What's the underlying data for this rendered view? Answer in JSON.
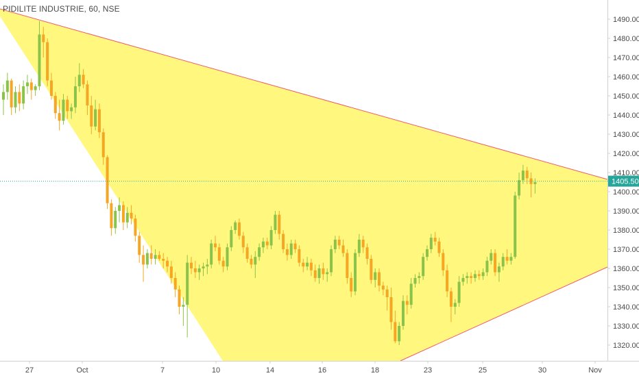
{
  "title": "PIDILITE INDUSTRIE, 60, NSE",
  "colors": {
    "up": "#8BC34A",
    "down": "#F5A623",
    "wedge_fill": "#FFF55A",
    "wedge_line": "#F05A6A",
    "last_price_bg": "#26A69A",
    "axis_text": "#4a4a4a",
    "axis_line": "#d0d0d0"
  },
  "chart_data": {
    "type": "candlestick",
    "title": "PIDILITE INDUSTRIE, 60, NSE",
    "y_ticks": [
      1320,
      1330,
      1340,
      1350,
      1360,
      1370,
      1380,
      1390,
      1400,
      1410,
      1420,
      1430,
      1440,
      1450,
      1460,
      1470,
      1480,
      1490
    ],
    "y_tick_labels": [
      "1320.00",
      "1330.00",
      "1340.00",
      "1350.00",
      "1360.00",
      "1370.00",
      "1380.00",
      "1390.00",
      "1400.00",
      "1410.00",
      "1420.00",
      "1430.00",
      "1440.00",
      "1450.00",
      "1460.00",
      "1470.00",
      "1480.00",
      "1490.00"
    ],
    "ylim": [
      1316,
      1494
    ],
    "x_labels": [
      "27",
      "Oct",
      "7",
      "10",
      "14",
      "16",
      "18",
      "23",
      "25",
      "30",
      "Nov"
    ],
    "last_price": 1405.5,
    "last_price_label": "1405.50",
    "candles": [
      {
        "o": 1448,
        "h": 1456,
        "l": 1440,
        "c": 1452
      },
      {
        "o": 1452,
        "h": 1462,
        "l": 1448,
        "c": 1458
      },
      {
        "o": 1458,
        "h": 1459,
        "l": 1440,
        "c": 1444
      },
      {
        "o": 1444,
        "h": 1455,
        "l": 1441,
        "c": 1452
      },
      {
        "o": 1452,
        "h": 1456,
        "l": 1442,
        "c": 1446
      },
      {
        "o": 1446,
        "h": 1458,
        "l": 1443,
        "c": 1455
      },
      {
        "o": 1455,
        "h": 1461,
        "l": 1451,
        "c": 1457
      },
      {
        "o": 1457,
        "h": 1459,
        "l": 1448,
        "c": 1453
      },
      {
        "o": 1453,
        "h": 1456,
        "l": 1450,
        "c": 1455
      },
      {
        "o": 1455,
        "h": 1489,
        "l": 1453,
        "c": 1482
      },
      {
        "o": 1482,
        "h": 1486,
        "l": 1470,
        "c": 1478
      },
      {
        "o": 1478,
        "h": 1480,
        "l": 1455,
        "c": 1458
      },
      {
        "o": 1458,
        "h": 1462,
        "l": 1448,
        "c": 1450
      },
      {
        "o": 1450,
        "h": 1452,
        "l": 1438,
        "c": 1441
      },
      {
        "o": 1441,
        "h": 1448,
        "l": 1432,
        "c": 1437
      },
      {
        "o": 1437,
        "h": 1451,
        "l": 1435,
        "c": 1448
      },
      {
        "o": 1448,
        "h": 1450,
        "l": 1438,
        "c": 1442
      },
      {
        "o": 1442,
        "h": 1446,
        "l": 1438,
        "c": 1444
      },
      {
        "o": 1444,
        "h": 1460,
        "l": 1441,
        "c": 1455
      },
      {
        "o": 1455,
        "h": 1467,
        "l": 1452,
        "c": 1461
      },
      {
        "o": 1461,
        "h": 1464,
        "l": 1454,
        "c": 1456
      },
      {
        "o": 1456,
        "h": 1458,
        "l": 1440,
        "c": 1445
      },
      {
        "o": 1445,
        "h": 1450,
        "l": 1430,
        "c": 1434
      },
      {
        "o": 1434,
        "h": 1448,
        "l": 1432,
        "c": 1443
      },
      {
        "o": 1443,
        "h": 1446,
        "l": 1428,
        "c": 1431
      },
      {
        "o": 1431,
        "h": 1433,
        "l": 1414,
        "c": 1418
      },
      {
        "o": 1418,
        "h": 1419,
        "l": 1391,
        "c": 1394
      },
      {
        "o": 1394,
        "h": 1396,
        "l": 1377,
        "c": 1381
      },
      {
        "o": 1381,
        "h": 1392,
        "l": 1378,
        "c": 1390
      },
      {
        "o": 1390,
        "h": 1397,
        "l": 1384,
        "c": 1393
      },
      {
        "o": 1393,
        "h": 1395,
        "l": 1380,
        "c": 1384
      },
      {
        "o": 1384,
        "h": 1392,
        "l": 1381,
        "c": 1389
      },
      {
        "o": 1389,
        "h": 1393,
        "l": 1383,
        "c": 1386
      },
      {
        "o": 1386,
        "h": 1388,
        "l": 1374,
        "c": 1377
      },
      {
        "o": 1377,
        "h": 1379,
        "l": 1363,
        "c": 1367
      },
      {
        "o": 1367,
        "h": 1372,
        "l": 1353,
        "c": 1362
      },
      {
        "o": 1362,
        "h": 1370,
        "l": 1360,
        "c": 1368
      },
      {
        "o": 1368,
        "h": 1372,
        "l": 1362,
        "c": 1365
      },
      {
        "o": 1365,
        "h": 1370,
        "l": 1362,
        "c": 1367
      },
      {
        "o": 1367,
        "h": 1369,
        "l": 1364,
        "c": 1365
      },
      {
        "o": 1365,
        "h": 1368,
        "l": 1360,
        "c": 1364
      },
      {
        "o": 1364,
        "h": 1366,
        "l": 1358,
        "c": 1361
      },
      {
        "o": 1361,
        "h": 1364,
        "l": 1352,
        "c": 1355
      },
      {
        "o": 1355,
        "h": 1358,
        "l": 1345,
        "c": 1349
      },
      {
        "o": 1349,
        "h": 1351,
        "l": 1336,
        "c": 1340
      },
      {
        "o": 1340,
        "h": 1345,
        "l": 1330,
        "c": 1341
      },
      {
        "o": 1341,
        "h": 1367,
        "l": 1324,
        "c": 1363
      },
      {
        "o": 1363,
        "h": 1366,
        "l": 1357,
        "c": 1360
      },
      {
        "o": 1360,
        "h": 1364,
        "l": 1355,
        "c": 1358
      },
      {
        "o": 1358,
        "h": 1362,
        "l": 1354,
        "c": 1360
      },
      {
        "o": 1360,
        "h": 1363,
        "l": 1356,
        "c": 1361
      },
      {
        "o": 1361,
        "h": 1365,
        "l": 1357,
        "c": 1362
      },
      {
        "o": 1362,
        "h": 1375,
        "l": 1360,
        "c": 1373
      },
      {
        "o": 1373,
        "h": 1377,
        "l": 1369,
        "c": 1371
      },
      {
        "o": 1371,
        "h": 1373,
        "l": 1362,
        "c": 1364
      },
      {
        "o": 1364,
        "h": 1366,
        "l": 1358,
        "c": 1361
      },
      {
        "o": 1361,
        "h": 1373,
        "l": 1359,
        "c": 1371
      },
      {
        "o": 1371,
        "h": 1382,
        "l": 1369,
        "c": 1380
      },
      {
        "o": 1380,
        "h": 1385,
        "l": 1378,
        "c": 1384
      },
      {
        "o": 1384,
        "h": 1386,
        "l": 1375,
        "c": 1377
      },
      {
        "o": 1377,
        "h": 1379,
        "l": 1368,
        "c": 1371
      },
      {
        "o": 1371,
        "h": 1373,
        "l": 1363,
        "c": 1365
      },
      {
        "o": 1365,
        "h": 1367,
        "l": 1360,
        "c": 1362
      },
      {
        "o": 1362,
        "h": 1369,
        "l": 1355,
        "c": 1366
      },
      {
        "o": 1366,
        "h": 1373,
        "l": 1364,
        "c": 1371
      },
      {
        "o": 1371,
        "h": 1376,
        "l": 1368,
        "c": 1374
      },
      {
        "o": 1374,
        "h": 1376,
        "l": 1370,
        "c": 1372
      },
      {
        "o": 1372,
        "h": 1382,
        "l": 1370,
        "c": 1380
      },
      {
        "o": 1380,
        "h": 1390,
        "l": 1378,
        "c": 1388
      },
      {
        "o": 1388,
        "h": 1390,
        "l": 1375,
        "c": 1378
      },
      {
        "o": 1378,
        "h": 1380,
        "l": 1368,
        "c": 1370
      },
      {
        "o": 1370,
        "h": 1373,
        "l": 1364,
        "c": 1367
      },
      {
        "o": 1367,
        "h": 1375,
        "l": 1365,
        "c": 1373
      },
      {
        "o": 1373,
        "h": 1375,
        "l": 1368,
        "c": 1370
      },
      {
        "o": 1370,
        "h": 1372,
        "l": 1361,
        "c": 1363
      },
      {
        "o": 1363,
        "h": 1365,
        "l": 1358,
        "c": 1361
      },
      {
        "o": 1361,
        "h": 1366,
        "l": 1359,
        "c": 1363
      },
      {
        "o": 1363,
        "h": 1365,
        "l": 1356,
        "c": 1359
      },
      {
        "o": 1359,
        "h": 1362,
        "l": 1353,
        "c": 1355
      },
      {
        "o": 1355,
        "h": 1362,
        "l": 1352,
        "c": 1360
      },
      {
        "o": 1360,
        "h": 1363,
        "l": 1354,
        "c": 1357
      },
      {
        "o": 1357,
        "h": 1360,
        "l": 1353,
        "c": 1358
      },
      {
        "o": 1358,
        "h": 1372,
        "l": 1356,
        "c": 1370
      },
      {
        "o": 1370,
        "h": 1377,
        "l": 1368,
        "c": 1375
      },
      {
        "o": 1375,
        "h": 1377,
        "l": 1370,
        "c": 1372
      },
      {
        "o": 1372,
        "h": 1375,
        "l": 1366,
        "c": 1368
      },
      {
        "o": 1368,
        "h": 1370,
        "l": 1352,
        "c": 1355
      },
      {
        "o": 1355,
        "h": 1358,
        "l": 1345,
        "c": 1348
      },
      {
        "o": 1348,
        "h": 1370,
        "l": 1346,
        "c": 1368
      },
      {
        "o": 1368,
        "h": 1378,
        "l": 1366,
        "c": 1375
      },
      {
        "o": 1375,
        "h": 1377,
        "l": 1368,
        "c": 1371
      },
      {
        "o": 1371,
        "h": 1373,
        "l": 1362,
        "c": 1365
      },
      {
        "o": 1365,
        "h": 1367,
        "l": 1352,
        "c": 1354
      },
      {
        "o": 1354,
        "h": 1360,
        "l": 1350,
        "c": 1358
      },
      {
        "o": 1358,
        "h": 1360,
        "l": 1348,
        "c": 1351
      },
      {
        "o": 1351,
        "h": 1353,
        "l": 1346,
        "c": 1349
      },
      {
        "o": 1349,
        "h": 1351,
        "l": 1338,
        "c": 1345
      },
      {
        "o": 1345,
        "h": 1350,
        "l": 1328,
        "c": 1332
      },
      {
        "o": 1332,
        "h": 1338,
        "l": 1321,
        "c": 1322
      },
      {
        "o": 1322,
        "h": 1332,
        "l": 1320,
        "c": 1330
      },
      {
        "o": 1330,
        "h": 1346,
        "l": 1328,
        "c": 1343
      },
      {
        "o": 1343,
        "h": 1346,
        "l": 1336,
        "c": 1341
      },
      {
        "o": 1341,
        "h": 1355,
        "l": 1339,
        "c": 1352
      },
      {
        "o": 1352,
        "h": 1357,
        "l": 1350,
        "c": 1355
      },
      {
        "o": 1355,
        "h": 1358,
        "l": 1352,
        "c": 1356
      },
      {
        "o": 1356,
        "h": 1368,
        "l": 1354,
        "c": 1366
      },
      {
        "o": 1366,
        "h": 1372,
        "l": 1364,
        "c": 1370
      },
      {
        "o": 1370,
        "h": 1378,
        "l": 1368,
        "c": 1376
      },
      {
        "o": 1376,
        "h": 1379,
        "l": 1372,
        "c": 1374
      },
      {
        "o": 1374,
        "h": 1376,
        "l": 1366,
        "c": 1368
      },
      {
        "o": 1368,
        "h": 1370,
        "l": 1356,
        "c": 1359
      },
      {
        "o": 1359,
        "h": 1362,
        "l": 1345,
        "c": 1348
      },
      {
        "o": 1348,
        "h": 1350,
        "l": 1332,
        "c": 1340
      },
      {
        "o": 1340,
        "h": 1344,
        "l": 1336,
        "c": 1342
      },
      {
        "o": 1342,
        "h": 1356,
        "l": 1340,
        "c": 1353
      },
      {
        "o": 1353,
        "h": 1357,
        "l": 1351,
        "c": 1355
      },
      {
        "o": 1355,
        "h": 1358,
        "l": 1352,
        "c": 1356
      },
      {
        "o": 1356,
        "h": 1358,
        "l": 1352,
        "c": 1355
      },
      {
        "o": 1355,
        "h": 1359,
        "l": 1353,
        "c": 1357
      },
      {
        "o": 1357,
        "h": 1359,
        "l": 1354,
        "c": 1356
      },
      {
        "o": 1356,
        "h": 1360,
        "l": 1354,
        "c": 1358
      },
      {
        "o": 1358,
        "h": 1366,
        "l": 1356,
        "c": 1364
      },
      {
        "o": 1364,
        "h": 1370,
        "l": 1362,
        "c": 1368
      },
      {
        "o": 1368,
        "h": 1370,
        "l": 1356,
        "c": 1358
      },
      {
        "o": 1358,
        "h": 1363,
        "l": 1353,
        "c": 1361
      },
      {
        "o": 1361,
        "h": 1368,
        "l": 1359,
        "c": 1366
      },
      {
        "o": 1366,
        "h": 1370,
        "l": 1362,
        "c": 1364
      },
      {
        "o": 1364,
        "h": 1368,
        "l": 1362,
        "c": 1366
      },
      {
        "o": 1366,
        "h": 1400,
        "l": 1365,
        "c": 1398
      },
      {
        "o": 1398,
        "h": 1410,
        "l": 1396,
        "c": 1406
      },
      {
        "o": 1406,
        "h": 1414,
        "l": 1404,
        "c": 1411
      },
      {
        "o": 1411,
        "h": 1413,
        "l": 1404,
        "c": 1407
      },
      {
        "o": 1407,
        "h": 1410,
        "l": 1397,
        "c": 1404
      },
      {
        "o": 1404,
        "h": 1407,
        "l": 1399,
        "c": 1405
      }
    ]
  }
}
